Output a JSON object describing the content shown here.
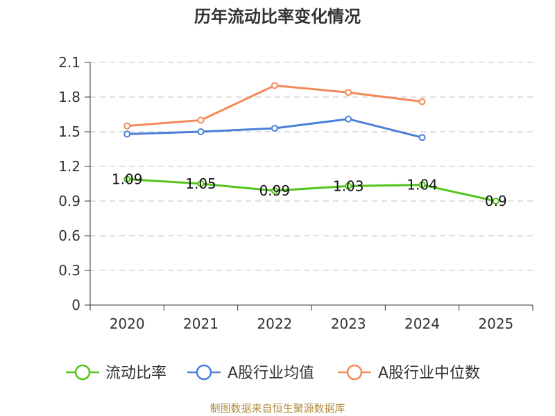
{
  "chart_data": {
    "type": "line",
    "title": "历年流动比率变化情况",
    "categories": [
      "2020",
      "2021",
      "2022",
      "2023",
      "2024",
      "2025"
    ],
    "ylim": [
      0,
      2.1
    ],
    "yticks": [
      "0",
      "0.3",
      "0.6",
      "0.9",
      "1.2",
      "1.5",
      "1.8",
      "2.1"
    ],
    "grid": true,
    "legend_position": "bottom",
    "series": [
      {
        "name": "流动比率",
        "color": "#52c41a",
        "values": [
          1.09,
          1.05,
          0.99,
          1.03,
          1.04,
          0.9
        ],
        "labels": [
          "1.09",
          "1.05",
          "0.99",
          "1.03",
          "1.04",
          "0.9"
        ]
      },
      {
        "name": "A股行业均值",
        "color": "#4a7fd8",
        "values": [
          1.48,
          1.5,
          1.53,
          1.61,
          1.45,
          null
        ]
      },
      {
        "name": "A股行业中位数",
        "color": "#f5895a",
        "values": [
          1.55,
          1.6,
          1.9,
          1.84,
          1.76,
          null
        ]
      }
    ],
    "source": "制图数据来自恒生聚源数据库"
  }
}
